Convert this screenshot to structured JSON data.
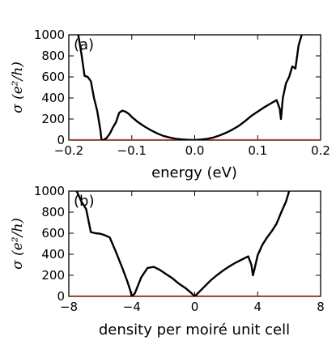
{
  "chart_data": [
    {
      "type": "line",
      "panel_label": "(a)",
      "xlabel": "energy (eV)",
      "ylabel": "σ (e²/h)",
      "xlim": [
        -0.2,
        0.2
      ],
      "ylim": [
        0,
        1000
      ],
      "xticks": [
        -0.2,
        -0.1,
        0.0,
        0.1,
        0.2
      ],
      "xtick_labels": [
        "−0.2",
        "−0.1",
        "0.0",
        "0.1",
        "0.2"
      ],
      "yticks": [
        0,
        200,
        400,
        600,
        800,
        1000
      ],
      "ytick_labels": [
        "0",
        "200",
        "400",
        "600",
        "800",
        "1000"
      ],
      "grid": false,
      "series": [
        {
          "color": "#000000",
          "x": [
            -0.185,
            -0.18,
            -0.175,
            -0.17,
            -0.165,
            -0.16,
            -0.155,
            -0.15,
            -0.148,
            -0.145,
            -0.14,
            -0.135,
            -0.13,
            -0.125,
            -0.12,
            -0.115,
            -0.11,
            -0.105,
            -0.1,
            -0.09,
            -0.08,
            -0.07,
            -0.06,
            -0.05,
            -0.04,
            -0.03,
            -0.02,
            -0.01,
            0.0,
            0.01,
            0.02,
            0.03,
            0.04,
            0.05,
            0.06,
            0.07,
            0.08,
            0.09,
            0.1,
            0.11,
            0.12,
            0.13,
            0.135,
            0.137,
            0.14,
            0.145,
            0.15,
            0.155,
            0.16,
            0.165,
            0.17
          ],
          "y": [
            1000,
            820,
            610,
            600,
            560,
            400,
            280,
            100,
            0,
            0,
            20,
            60,
            120,
            170,
            260,
            280,
            270,
            250,
            220,
            170,
            130,
            95,
            65,
            40,
            25,
            12,
            6,
            2,
            0,
            5,
            12,
            25,
            45,
            70,
            100,
            135,
            180,
            230,
            270,
            310,
            345,
            380,
            300,
            200,
            400,
            540,
            600,
            700,
            680,
            900,
            1000
          ]
        }
      ],
      "baseline": {
        "y": 0,
        "color": "#c0392b"
      }
    },
    {
      "type": "line",
      "panel_label": "(b)",
      "xlabel": "density per moiré unit cell",
      "ylabel": "σ (e²/h)",
      "xlim": [
        -8,
        8
      ],
      "ylim": [
        0,
        1000
      ],
      "xticks": [
        -8,
        -4,
        0,
        4,
        8
      ],
      "xtick_labels": [
        "−8",
        "−4",
        "0",
        "4",
        "8"
      ],
      "yticks": [
        0,
        200,
        400,
        600,
        800,
        1000
      ],
      "ytick_labels": [
        "0",
        "200",
        "400",
        "600",
        "800",
        "1000"
      ],
      "grid": false,
      "series": [
        {
          "color": "#000000",
          "x": [
            -7.5,
            -7.2,
            -6.9,
            -6.6,
            -6.3,
            -6.0,
            -5.7,
            -5.4,
            -5.0,
            -4.6,
            -4.3,
            -4.1,
            -4.0,
            -3.8,
            -3.4,
            -3.0,
            -2.6,
            -2.2,
            -1.8,
            -1.4,
            -1.0,
            -0.6,
            -0.2,
            0.0,
            0.2,
            0.6,
            1.0,
            1.4,
            1.8,
            2.2,
            2.6,
            3.0,
            3.4,
            3.6,
            3.7,
            3.8,
            4.0,
            4.3,
            4.6,
            4.9,
            5.2,
            5.5,
            5.8,
            6.0
          ],
          "y": [
            1000,
            900,
            830,
            610,
            600,
            595,
            580,
            560,
            420,
            270,
            150,
            60,
            0,
            30,
            180,
            270,
            280,
            250,
            210,
            170,
            120,
            80,
            30,
            0,
            30,
            90,
            150,
            200,
            245,
            285,
            320,
            350,
            380,
            300,
            200,
            260,
            390,
            490,
            560,
            620,
            690,
            800,
            900,
            1000
          ]
        }
      ],
      "baseline": {
        "y": 0,
        "color": "#c0392b"
      }
    }
  ]
}
